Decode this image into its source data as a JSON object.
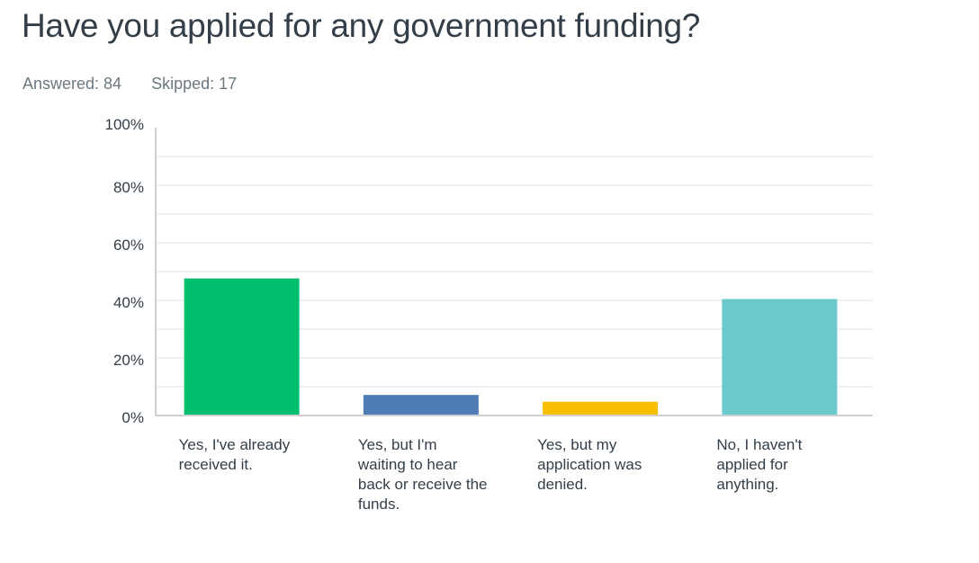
{
  "header": {
    "title": "Have you applied for any government funding?",
    "answered": "Answered: 84",
    "skipped": "Skipped: 17"
  },
  "chart_data": {
    "type": "bar",
    "title": "Have you applied for any government funding?",
    "categories": [
      "Yes, I've already received it.",
      "Yes, but I'm waiting to hear back or receive the funds.",
      "Yes, but my application was denied.",
      "No, I haven't applied for anything."
    ],
    "values": [
      47.62,
      7.14,
      4.76,
      40.48
    ],
    "unit": "%",
    "colors": [
      "#00bf6f",
      "#507cb6",
      "#f9be00",
      "#6bc8cd"
    ],
    "ylim": [
      0,
      100
    ],
    "yticks": [
      "0%",
      "20%",
      "40%",
      "60%",
      "80%",
      "100%"
    ],
    "grid": true
  }
}
